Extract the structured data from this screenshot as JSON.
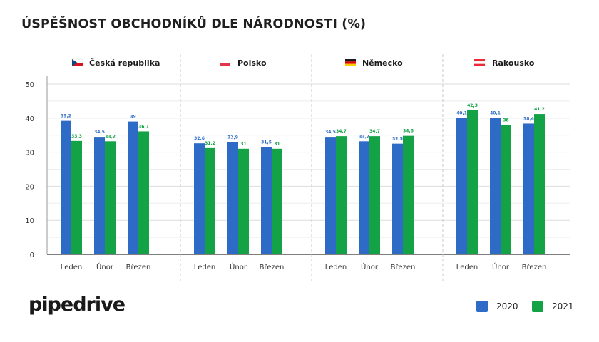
{
  "title": "ÚSPĚŠNOST OBCHODNÍKŮ DLE NÁRODNOSTI (%)",
  "logo": "pipedrive",
  "colors": {
    "2020": "#2e6bc6",
    "2021": "#13a246",
    "grid": "#e3e3e3",
    "separator": "#c8c8c8"
  },
  "legend": [
    {
      "label": "2020",
      "color": "#2e6bc6"
    },
    {
      "label": "2021",
      "color": "#13a246"
    }
  ],
  "chart_data": {
    "type": "bar",
    "title": "ÚSPĚŠNOST OBCHODNÍKŮ DLE NÁRODNOSTI (%)",
    "ylim": [
      0,
      50
    ],
    "yticks": [
      "0",
      "10",
      "20",
      "30",
      "40",
      "50"
    ],
    "grid": true,
    "legend_position": "bottom-right",
    "groups": [
      {
        "name": "Česká republika",
        "flag": "czech-flag",
        "categories": [
          "Leden",
          "Únor",
          "Březen"
        ],
        "series": [
          {
            "name": "2020",
            "values": [
              39.2,
              34.5,
              39
            ],
            "labels": [
              "39,2",
              "34,5",
              "39"
            ]
          },
          {
            "name": "2021",
            "values": [
              33.3,
              33.2,
              36.1
            ],
            "labels": [
              "33,3",
              "33,2",
              "36,1"
            ]
          }
        ]
      },
      {
        "name": "Polsko",
        "flag": "poland-flag",
        "categories": [
          "Leden",
          "Únor",
          "Březen"
        ],
        "series": [
          {
            "name": "2020",
            "values": [
              32.6,
              32.9,
              31.5
            ],
            "labels": [
              "32,6",
              "32,9",
              "31,5"
            ]
          },
          {
            "name": "2021",
            "values": [
              31.2,
              31,
              31
            ],
            "labels": [
              "31,2",
              "31",
              "31"
            ]
          }
        ]
      },
      {
        "name": "Německo",
        "flag": "germany-flag",
        "categories": [
          "Leden",
          "Únor",
          "Březen"
        ],
        "series": [
          {
            "name": "2020",
            "values": [
              34.5,
              33.2,
              32.5
            ],
            "labels": [
              "34,5",
              "33,2",
              "32,5"
            ]
          },
          {
            "name": "2021",
            "values": [
              34.7,
              34.7,
              34.8
            ],
            "labels": [
              "34,7",
              "34,7",
              "34,8"
            ]
          }
        ]
      },
      {
        "name": "Rakousko",
        "flag": "austria-flag",
        "categories": [
          "Leden",
          "Únor",
          "Březen"
        ],
        "series": [
          {
            "name": "2020",
            "values": [
              40.1,
              40.1,
              38.4
            ],
            "labels": [
              "40,1",
              "40,1",
              "38,4"
            ]
          },
          {
            "name": "2021",
            "values": [
              42.3,
              38,
              41.2
            ],
            "labels": [
              "42,3",
              "38",
              "41,2"
            ]
          }
        ]
      }
    ]
  }
}
